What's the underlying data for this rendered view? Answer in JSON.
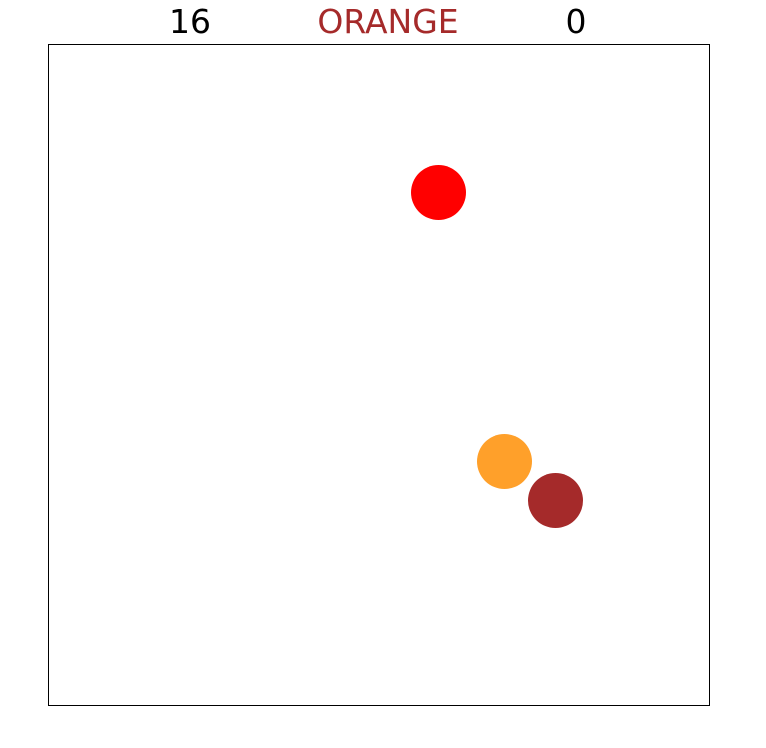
{
  "hud": {
    "left_score": "16",
    "target_word": "ORANGE",
    "target_word_color": "#a52a2a",
    "right_score": "0"
  },
  "balls": [
    {
      "name": "red-ball",
      "color": "#ff0000"
    },
    {
      "name": "orange-ball",
      "color": "#ffa02a"
    },
    {
      "name": "brown-ball",
      "color": "#a52a2a"
    }
  ]
}
